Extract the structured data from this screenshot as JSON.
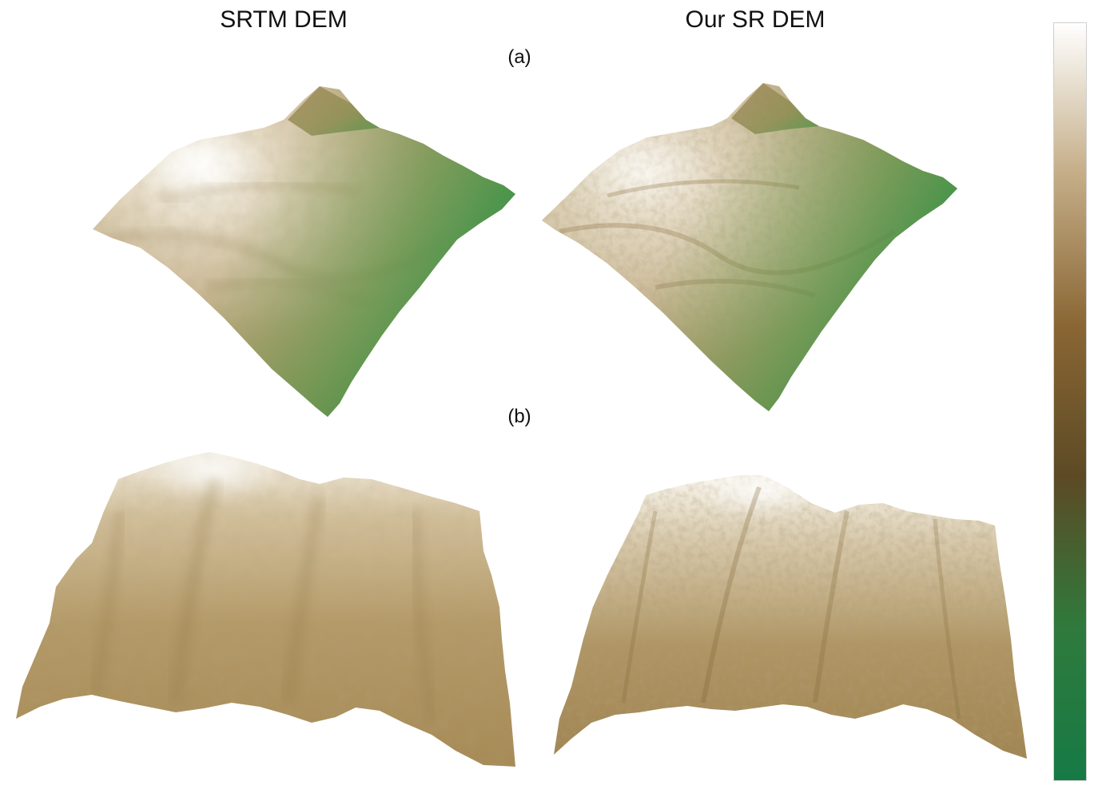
{
  "columns": {
    "left_title": "SRTM DEM",
    "right_title": "Our SR DEM"
  },
  "panels": {
    "a_label": "(a)",
    "b_label": "(b)"
  },
  "colorbar": {
    "colors": [
      "#ffffff",
      "#c4ad87",
      "#8a6634",
      "#5c4a25",
      "#2f7a3c",
      "#167a45"
    ]
  },
  "terrain_colors": {
    "highlight": "#fbf8f1",
    "sand": "#c9b38e",
    "tan": "#a98e5c",
    "dark": "#86703f",
    "green": "#2f9447"
  }
}
